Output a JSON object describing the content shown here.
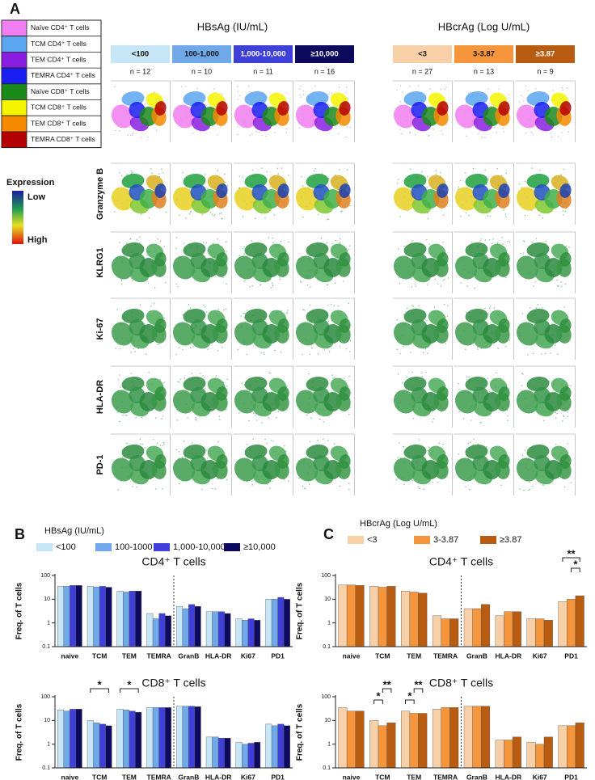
{
  "panel_labels": [
    "A",
    "B",
    "C"
  ],
  "panel_a": {
    "cell_types": [
      {
        "name": "Naïve CD4⁺ T cells",
        "color": "#f07ef0"
      },
      {
        "name": "TCM CD4⁺ T cells",
        "color": "#5aa6f0"
      },
      {
        "name": "TEM CD4⁺ T cells",
        "color": "#8a1ee0"
      },
      {
        "name": "TEMRA CD4⁺ T cells",
        "color": "#1a1ef0"
      },
      {
        "name": "Naïve CD8⁺ T cells",
        "color": "#1a8a1a"
      },
      {
        "name": "TCM CD8⁺ T cells",
        "color": "#f5f500"
      },
      {
        "name": "TEM CD8⁺ T cells",
        "color": "#f58a00"
      },
      {
        "name": "TEMRA CD8⁺ T cells",
        "color": "#b40000"
      }
    ],
    "expression": {
      "title": "Expression",
      "low": "Low",
      "high": "High"
    },
    "groups": [
      {
        "title": "HBsAg (IU/mL)",
        "levels": [
          {
            "label": "<100",
            "color": "#c6e6f7",
            "n": "n = 12"
          },
          {
            "label": "100-1,000",
            "color": "#6fa9ea",
            "n": "n = 10"
          },
          {
            "label": "1,000-10,000",
            "color": "#3f3fd9",
            "n": "n = 11"
          },
          {
            "label": "≥10,000",
            "color": "#0d0a5e",
            "n": "n = 16"
          }
        ]
      },
      {
        "title": "HBcrAg (Log U/mL)",
        "levels": [
          {
            "label": "<3",
            "color": "#f8d0a8",
            "n": "n = 27"
          },
          {
            "label": "3-3.87",
            "color": "#f5963c",
            "n": "n = 13"
          },
          {
            "label": "≥3.87",
            "color": "#b85c12",
            "n": "n = 9"
          }
        ]
      }
    ],
    "markers": [
      "Granzyme B",
      "KLRG1",
      "Ki-67",
      "HLA-DR",
      "PD-1"
    ]
  },
  "chart_data": [
    {
      "type": "bar",
      "title": "CD4⁺ T cells",
      "legend_title": "HBsAg (IU/mL)",
      "ylabel": "Freq. of T cells",
      "categories": [
        "naive",
        "TCM",
        "TEM",
        "TEMRA",
        "GranB",
        "HLA-DR",
        "Ki67",
        "PD1"
      ],
      "log_scale": true,
      "ylim": [
        0.1,
        100
      ],
      "yticks": [
        100,
        10,
        1,
        0.1
      ],
      "series": [
        {
          "name": "<100",
          "color": "#c6e6f7",
          "values": [
            35,
            35,
            22,
            2.5,
            5,
            3,
            1.5,
            10
          ]
        },
        {
          "name": "100-1000",
          "color": "#6fa9ea",
          "values": [
            35,
            33,
            20,
            1.5,
            4,
            3,
            1.3,
            10
          ]
        },
        {
          "name": "1,000-10,000",
          "color": "#3f3fd9",
          "values": [
            38,
            35,
            22,
            2.5,
            6,
            3,
            1.5,
            12
          ]
        },
        {
          "name": "≥10,000",
          "color": "#0d0a5e",
          "values": [
            38,
            32,
            22,
            2,
            5,
            2.5,
            1.3,
            10
          ]
        }
      ]
    },
    {
      "type": "bar",
      "title": "CD8⁺ T cells",
      "ylabel": "Freq. of T cells",
      "categories": [
        "naive",
        "TCM",
        "TEM",
        "TEMRA",
        "GranB",
        "HLA-DR",
        "Ki67",
        "PD1"
      ],
      "log_scale": true,
      "ylim": [
        0.1,
        100
      ],
      "yticks": [
        100,
        10,
        1,
        0.1
      ],
      "series": [
        {
          "color": "#c6e6f7",
          "values": [
            28,
            10,
            30,
            35,
            40,
            2,
            1.2,
            7
          ]
        },
        {
          "color": "#6fa9ea",
          "values": [
            25,
            8,
            28,
            35,
            40,
            2,
            1,
            6
          ]
        },
        {
          "color": "#3f3fd9",
          "values": [
            30,
            7,
            25,
            35,
            40,
            1.8,
            1.1,
            7
          ]
        },
        {
          "color": "#0d0a5e",
          "values": [
            30,
            6,
            22,
            35,
            38,
            1.8,
            1.2,
            6
          ]
        }
      ],
      "annotations": [
        "*",
        "*"
      ]
    },
    {
      "type": "bar",
      "title": "CD4⁺ T cells",
      "legend_title": "HBcrAg (Log U/mL)",
      "ylabel": "Freq. of T cells",
      "categories": [
        "naive",
        "TCM",
        "TEM",
        "TEMRA",
        "GranB",
        "HLA-DR",
        "Ki67",
        "PD1"
      ],
      "log_scale": true,
      "ylim": [
        0.1,
        100
      ],
      "yticks": [
        100,
        10,
        1,
        0.1
      ],
      "series": [
        {
          "name": "<3",
          "color": "#f8d0a8",
          "values": [
            40,
            35,
            22,
            2,
            4,
            2,
            1.5,
            8
          ]
        },
        {
          "name": "3-3.87",
          "color": "#f5963c",
          "values": [
            40,
            32,
            20,
            1.5,
            4,
            3,
            1.5,
            10
          ]
        },
        {
          "name": "≥3.87",
          "color": "#b85c12",
          "values": [
            38,
            35,
            18,
            1.5,
            6,
            3,
            1.3,
            14
          ]
        }
      ],
      "annotations": [
        "**",
        "*"
      ]
    },
    {
      "type": "bar",
      "title": "CD8⁺ T cells",
      "ylabel": "Freq. of T cells",
      "categories": [
        "naive",
        "TCM",
        "TEM",
        "TEMRA",
        "GranB",
        "HLA-DR",
        "Ki67",
        "PD1"
      ],
      "log_scale": true,
      "ylim": [
        0.1,
        100
      ],
      "yticks": [
        100,
        10,
        1,
        0.1
      ],
      "series": [
        {
          "color": "#f8d0a8",
          "values": [
            35,
            10,
            25,
            30,
            40,
            1.5,
            1.2,
            6
          ]
        },
        {
          "color": "#f5963c",
          "values": [
            25,
            6,
            20,
            35,
            40,
            1.5,
            1,
            6
          ]
        },
        {
          "color": "#b85c12",
          "values": [
            25,
            8,
            20,
            35,
            40,
            2,
            2,
            8
          ]
        }
      ],
      "annotations": [
        "*",
        "**",
        "*",
        "**"
      ]
    }
  ]
}
